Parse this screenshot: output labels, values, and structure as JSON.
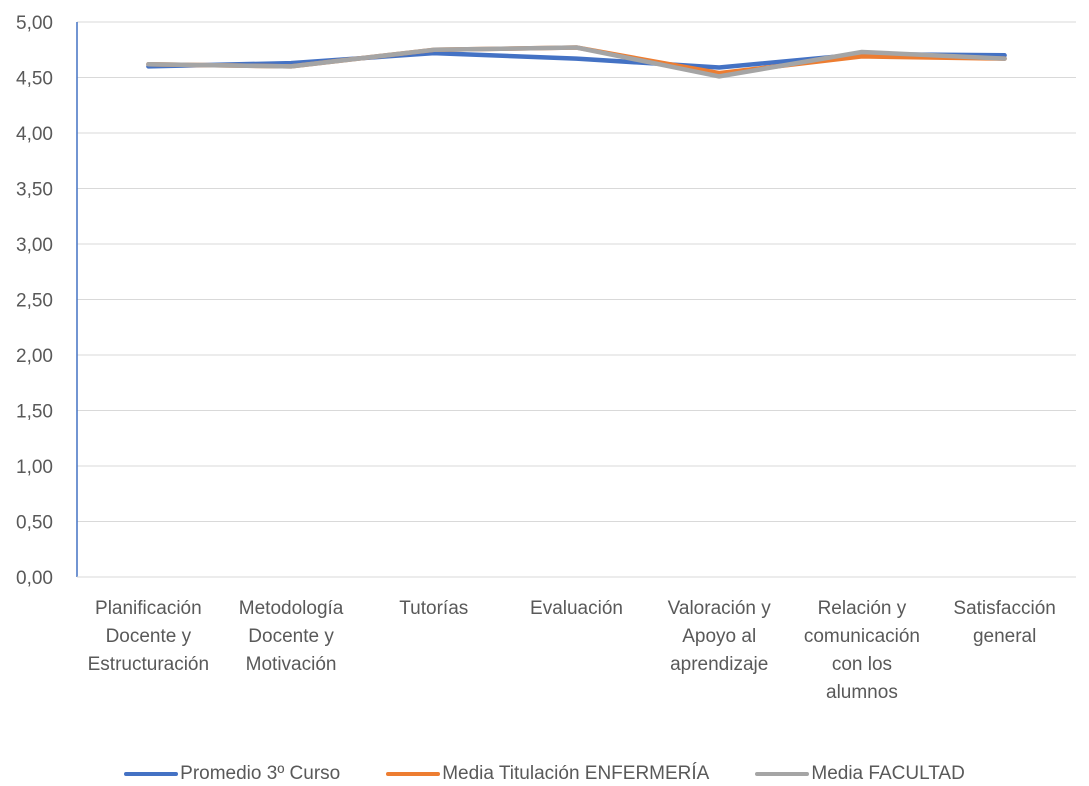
{
  "chart_data": {
    "type": "line",
    "title": "",
    "xlabel": "",
    "ylabel": "",
    "ylim": [
      0,
      5
    ],
    "y_ticks": [
      "0,00",
      "0,50",
      "1,00",
      "1,50",
      "2,00",
      "2,50",
      "3,00",
      "3,50",
      "4,00",
      "4,50",
      "5,00"
    ],
    "grid": true,
    "legend_position": "bottom",
    "categories": [
      [
        "Planificación",
        "Docente y",
        "Estructuración"
      ],
      [
        "Metodología",
        "Docente y",
        "Motivación"
      ],
      [
        "Tutorías"
      ],
      [
        "Evaluación"
      ],
      [
        "Valoración y",
        "Apoyo al",
        "aprendizaje"
      ],
      [
        "Relación y",
        "comunicación",
        "con los",
        "alumnos"
      ],
      [
        "Satisfacción",
        "general"
      ]
    ],
    "series": [
      {
        "name": "Promedio 3º Curso",
        "color": "#4472C4",
        "values": [
          4.6,
          4.63,
          4.72,
          4.67,
          4.59,
          4.71,
          4.7
        ]
      },
      {
        "name": "Media Titulación ENFERMERÍA",
        "color": "#ED7D31",
        "values": [
          4.62,
          4.6,
          4.75,
          4.77,
          4.54,
          4.69,
          4.67
        ]
      },
      {
        "name": "Media FACULTAD",
        "color": "#A5A5A5",
        "values": [
          4.62,
          4.6,
          4.75,
          4.77,
          4.51,
          4.73,
          4.67
        ]
      }
    ]
  }
}
